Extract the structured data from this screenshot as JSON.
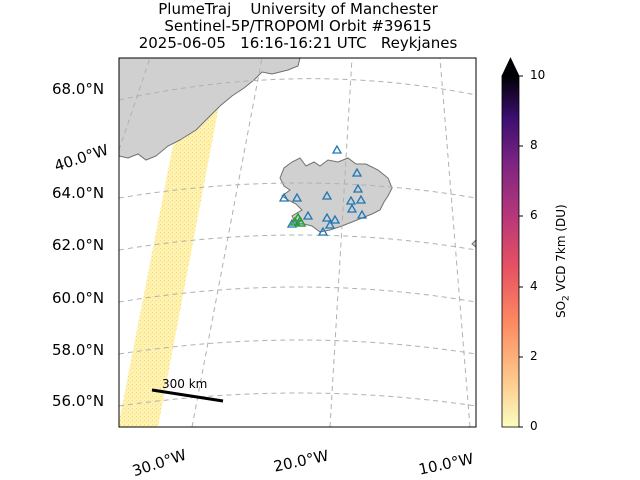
{
  "title": {
    "line1": "PlumeTraj    University of Manchester",
    "line2": "Sentinel-5P/TROPOMI Orbit #39615",
    "line3": "2025-06-05   16:16-16:21 UTC   Reykjanes"
  },
  "latitude_labels": [
    "68.0°N",
    "64.0°N",
    "62.0°N",
    "60.0°N",
    "58.0°N",
    "56.0°N"
  ],
  "longitude_labels": [
    "40.0°W",
    "30.0°W",
    "20.0°W",
    "10.0°W"
  ],
  "colorbar": {
    "label_prefix": "SO",
    "label_sub": "2",
    "label_suffix": " VCD 7km (DU)",
    "ticks": [
      "0",
      "2",
      "4",
      "6",
      "8",
      "10"
    ],
    "range": [
      0,
      10
    ],
    "extend": "max",
    "colormap": "magma_r"
  },
  "scale_bar": {
    "label": "300 km"
  },
  "map": {
    "land_color": "#d0d0d0",
    "coast_color": "#707070",
    "swath_color": "#fff2a8",
    "volcano_marker_color": "#1f77b4",
    "active_marker_color": "#2ca02c",
    "marker_shape": "triangle"
  },
  "chart_data": {
    "type": "map",
    "projection": "conic",
    "lat_ticks": [
      68,
      64,
      62,
      60,
      58,
      56
    ],
    "lon_ticks": [
      -40,
      -30,
      -20,
      -10
    ],
    "colorbar_range": [
      0,
      10
    ],
    "target": "Reykjanes"
  }
}
